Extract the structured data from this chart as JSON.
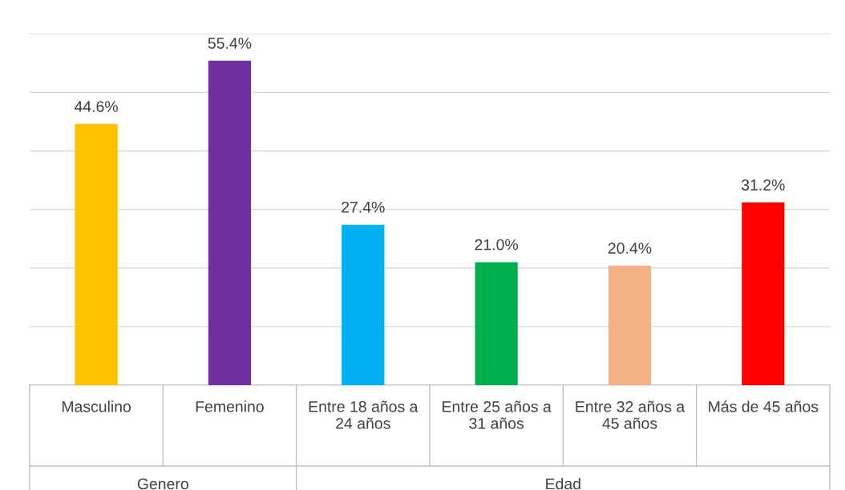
{
  "chart_data": {
    "type": "bar",
    "categories": [
      "Masculino",
      "Femenino",
      "Entre 18 años a\n24 años",
      "Entre 25 años a\n31 años",
      "Entre 32 años a\n45 años",
      "Más de 45 años"
    ],
    "values": [
      44.6,
      55.4,
      27.4,
      21.0,
      20.4,
      31.2
    ],
    "colors": [
      "#ffc000",
      "#7030a0",
      "#00b0f0",
      "#00b050",
      "#f4b183",
      "#ff0000"
    ],
    "value_labels": [
      "44.6%",
      "55.4%",
      "27.4%",
      "21.0%",
      "20.4%",
      "31.2%"
    ],
    "annotations": [
      "Genero",
      "Edad"
    ],
    "ylim": [
      0,
      60
    ],
    "yticks": [
      {
        "value": 0,
        "label": null
      },
      {
        "value": 10,
        "label": null
      },
      {
        "value": 20,
        "label": null
      },
      {
        "value": 30,
        "label": null
      },
      {
        "value": 40,
        "label": null
      },
      {
        "value": 50,
        "label": null
      },
      {
        "value": 60,
        "label": null
      }
    ],
    "tick_labels": "x",
    "grid": "y",
    "legend": false
  }
}
